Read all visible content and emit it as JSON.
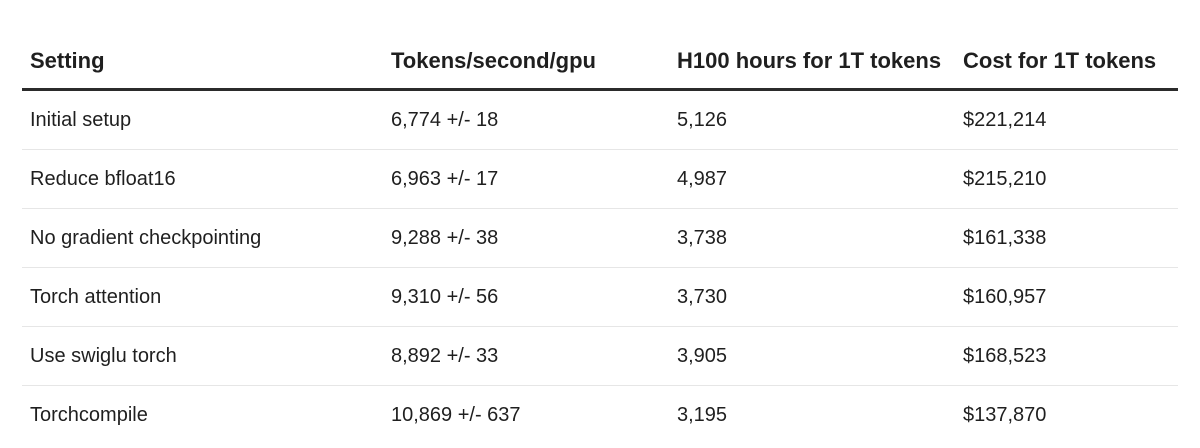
{
  "table": {
    "headers": [
      "Setting",
      "Tokens/second/gpu",
      "H100 hours for 1T tokens",
      "Cost for 1T tokens"
    ],
    "rows": [
      [
        "Initial setup",
        "6,774 +/- 18",
        "5,126",
        "$221,214"
      ],
      [
        "Reduce bfloat16",
        "6,963 +/- 17",
        "4,987",
        "$215,210"
      ],
      [
        "No gradient checkpointing",
        "9,288 +/- 38",
        "3,738",
        "$161,338"
      ],
      [
        "Torch attention",
        "9,310 +/- 56",
        "3,730",
        "$160,957"
      ],
      [
        "Use swiglu torch",
        "8,892 +/- 33",
        "3,905",
        "$168,523"
      ],
      [
        "Torchcompile",
        "10,869 +/- 637",
        "3,195",
        "$137,870"
      ]
    ]
  }
}
